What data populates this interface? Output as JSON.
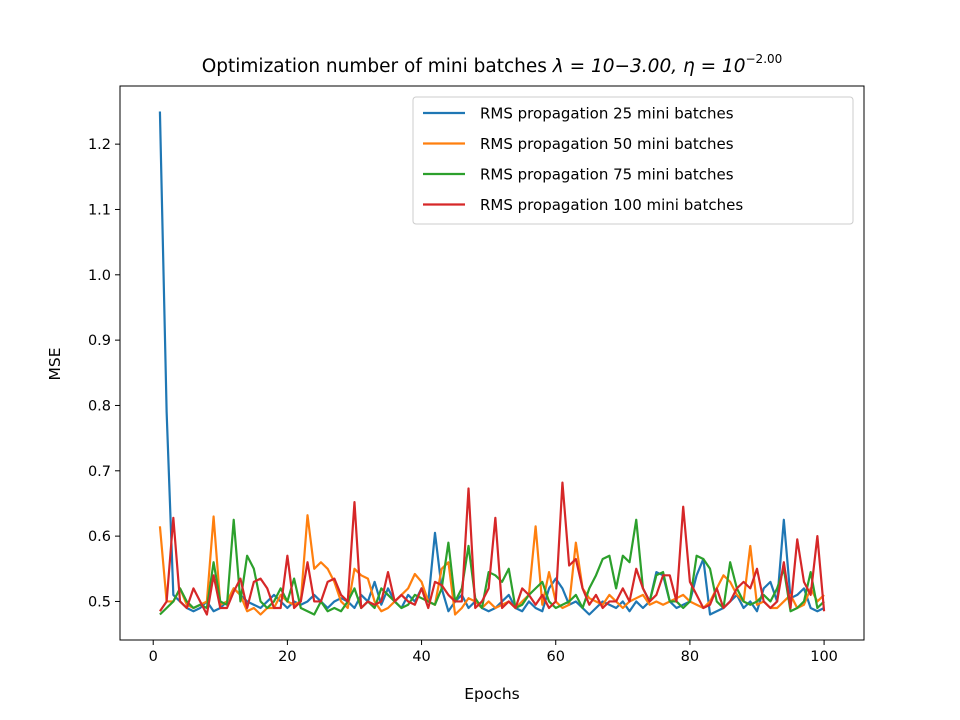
{
  "chart_data": {
    "type": "line",
    "title": "Optimization number of mini batches λ = 10−3.00, η = 10⁻²·⁰⁰",
    "title_parts": {
      "main": "Optimization number of mini batches ",
      "lambda_part": "λ = 10−3.00, η = 10",
      "eta_exponent": "−2.00"
    },
    "xlabel": "Epochs",
    "ylabel": "MSE",
    "xlim": [
      -4.95,
      105.95
    ],
    "ylim": [
      0.441,
      1.289
    ],
    "xticks": [
      0,
      20,
      40,
      60,
      80,
      100
    ],
    "xtick_labels": [
      "0",
      "20",
      "40",
      "60",
      "80",
      "100"
    ],
    "yticks": [
      0.5,
      0.6,
      0.7,
      0.8,
      0.9,
      1.0,
      1.1,
      1.2
    ],
    "ytick_labels": [
      "0.5",
      "0.6",
      "0.7",
      "0.8",
      "0.9",
      "1.0",
      "1.1",
      "1.2"
    ],
    "grid": false,
    "legend_position": "top-right",
    "series": [
      {
        "name": "RMS propagation 25 mini batches",
        "color": "#1f77b4",
        "x_start": 1,
        "values": [
          1.25,
          0.79,
          0.51,
          0.5,
          0.49,
          0.485,
          0.49,
          0.5,
          0.485,
          0.49,
          0.5,
          0.52,
          0.51,
          0.5,
          0.495,
          0.49,
          0.5,
          0.51,
          0.5,
          0.49,
          0.5,
          0.495,
          0.5,
          0.51,
          0.5,
          0.49,
          0.5,
          0.505,
          0.5,
          0.49,
          0.51,
          0.5,
          0.53,
          0.495,
          0.52,
          0.5,
          0.49,
          0.51,
          0.5,
          0.52,
          0.5,
          0.605,
          0.52,
          0.485,
          0.5,
          0.51,
          0.49,
          0.5,
          0.49,
          0.485,
          0.49,
          0.5,
          0.51,
          0.49,
          0.485,
          0.5,
          0.49,
          0.485,
          0.52,
          0.535,
          0.52,
          0.495,
          0.5,
          0.49,
          0.48,
          0.49,
          0.5,
          0.495,
          0.49,
          0.5,
          0.485,
          0.5,
          0.49,
          0.5,
          0.545,
          0.54,
          0.5,
          0.49,
          0.495,
          0.5,
          0.54,
          0.565,
          0.48,
          0.485,
          0.49,
          0.5,
          0.51,
          0.49,
          0.5,
          0.485,
          0.52,
          0.53,
          0.5,
          0.625,
          0.505,
          0.51,
          0.52,
          0.49,
          0.485,
          0.49
        ]
      },
      {
        "name": "RMS propagation 50 mini batches",
        "color": "#ff7f0e",
        "x_start": 1,
        "values": [
          0.615,
          0.5,
          0.5,
          0.52,
          0.495,
          0.49,
          0.495,
          0.5,
          0.63,
          0.495,
          0.5,
          0.52,
          0.51,
          0.485,
          0.49,
          0.48,
          0.49,
          0.49,
          0.51,
          0.5,
          0.495,
          0.5,
          0.632,
          0.55,
          0.56,
          0.55,
          0.53,
          0.5,
          0.49,
          0.55,
          0.54,
          0.535,
          0.5,
          0.485,
          0.49,
          0.5,
          0.51,
          0.52,
          0.542,
          0.53,
          0.5,
          0.495,
          0.55,
          0.56,
          0.48,
          0.49,
          0.505,
          0.5,
          0.49,
          0.5,
          0.49,
          0.495,
          0.5,
          0.49,
          0.5,
          0.51,
          0.615,
          0.495,
          0.545,
          0.5,
          0.49,
          0.495,
          0.59,
          0.52,
          0.505,
          0.5,
          0.495,
          0.51,
          0.5,
          0.49,
          0.5,
          0.505,
          0.51,
          0.495,
          0.5,
          0.495,
          0.5,
          0.505,
          0.51,
          0.5,
          0.495,
          0.49,
          0.5,
          0.52,
          0.54,
          0.53,
          0.51,
          0.5,
          0.585,
          0.495,
          0.5,
          0.49,
          0.49,
          0.5,
          0.51,
          0.49,
          0.495,
          0.52,
          0.5,
          0.51
        ]
      },
      {
        "name": "RMS propagation 75 mini batches",
        "color": "#2ca02c",
        "x_start": 1,
        "values": [
          0.48,
          0.49,
          0.5,
          0.52,
          0.5,
          0.49,
          0.495,
          0.49,
          0.56,
          0.5,
          0.495,
          0.625,
          0.5,
          0.57,
          0.55,
          0.5,
          0.49,
          0.5,
          0.52,
          0.5,
          0.535,
          0.49,
          0.485,
          0.48,
          0.5,
          0.485,
          0.49,
          0.485,
          0.5,
          0.52,
          0.49,
          0.5,
          0.49,
          0.52,
          0.51,
          0.5,
          0.49,
          0.495,
          0.51,
          0.505,
          0.5,
          0.495,
          0.52,
          0.59,
          0.5,
          0.52,
          0.585,
          0.505,
          0.49,
          0.545,
          0.54,
          0.53,
          0.55,
          0.49,
          0.495,
          0.51,
          0.52,
          0.53,
          0.5,
          0.49,
          0.495,
          0.5,
          0.51,
          0.49,
          0.52,
          0.54,
          0.565,
          0.57,
          0.52,
          0.57,
          0.56,
          0.625,
          0.52,
          0.5,
          0.54,
          0.545,
          0.5,
          0.5,
          0.49,
          0.5,
          0.57,
          0.565,
          0.55,
          0.5,
          0.49,
          0.56,
          0.52,
          0.5,
          0.495,
          0.5,
          0.51,
          0.5,
          0.52,
          0.55,
          0.485,
          0.49,
          0.5,
          0.545,
          0.49,
          0.5
        ]
      },
      {
        "name": "RMS propagation 100 mini batches",
        "color": "#d62728",
        "x_start": 1,
        "values": [
          0.485,
          0.5,
          0.628,
          0.5,
          0.49,
          0.52,
          0.5,
          0.48,
          0.54,
          0.49,
          0.49,
          0.515,
          0.535,
          0.49,
          0.53,
          0.535,
          0.52,
          0.49,
          0.49,
          0.57,
          0.49,
          0.5,
          0.56,
          0.5,
          0.5,
          0.53,
          0.535,
          0.51,
          0.5,
          0.652,
          0.49,
          0.5,
          0.495,
          0.5,
          0.545,
          0.5,
          0.51,
          0.5,
          0.495,
          0.52,
          0.49,
          0.53,
          0.525,
          0.51,
          0.5,
          0.5,
          0.673,
          0.49,
          0.5,
          0.52,
          0.628,
          0.49,
          0.5,
          0.49,
          0.52,
          0.51,
          0.495,
          0.51,
          0.49,
          0.5,
          0.682,
          0.555,
          0.565,
          0.52,
          0.495,
          0.51,
          0.49,
          0.5,
          0.5,
          0.52,
          0.5,
          0.55,
          0.52,
          0.5,
          0.51,
          0.54,
          0.54,
          0.5,
          0.645,
          0.53,
          0.51,
          0.49,
          0.495,
          0.52,
          0.49,
          0.5,
          0.52,
          0.53,
          0.52,
          0.55,
          0.5,
          0.49,
          0.5,
          0.56,
          0.49,
          0.595,
          0.53,
          0.51,
          0.6,
          0.485
        ]
      }
    ]
  }
}
